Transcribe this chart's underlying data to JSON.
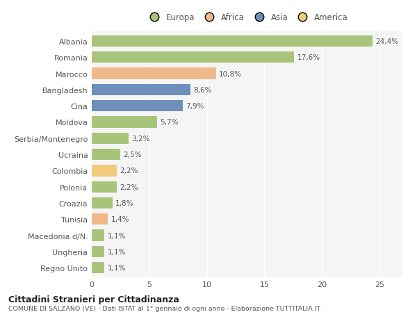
{
  "countries": [
    "Albania",
    "Romania",
    "Marocco",
    "Bangladesh",
    "Cina",
    "Moldova",
    "Serbia/Montenegro",
    "Ucraina",
    "Colombia",
    "Polonia",
    "Croazia",
    "Tunisia",
    "Macedonia d/N.",
    "Ungheria",
    "Regno Unito"
  ],
  "values": [
    24.4,
    17.6,
    10.8,
    8.6,
    7.9,
    5.7,
    3.2,
    2.5,
    2.2,
    2.2,
    1.8,
    1.4,
    1.1,
    1.1,
    1.1
  ],
  "continents": [
    "Europa",
    "Europa",
    "Africa",
    "Asia",
    "Asia",
    "Europa",
    "Europa",
    "Europa",
    "America",
    "Europa",
    "Europa",
    "Africa",
    "Europa",
    "Europa",
    "Europa"
  ],
  "continent_colors": {
    "Europa": "#a8c47a",
    "Africa": "#f0b98a",
    "Asia": "#6e8fbb",
    "America": "#f0cc7a"
  },
  "legend_order": [
    "Europa",
    "Africa",
    "Asia",
    "America"
  ],
  "title": "Cittadini Stranieri per Cittadinanza",
  "subtitle": "COMUNE DI SALZANO (VE) - Dati ISTAT al 1° gennaio di ogni anno - Elaborazione TUTTITALIA.IT",
  "xlim": [
    0,
    27
  ],
  "xticks": [
    0,
    5,
    10,
    15,
    20,
    25
  ],
  "bar_height": 0.7,
  "bg_color": "#ffffff",
  "plot_bg_color": "#f5f5f5",
  "grid_color": "#ffffff",
  "label_color": "#555555",
  "value_color": "#555555"
}
